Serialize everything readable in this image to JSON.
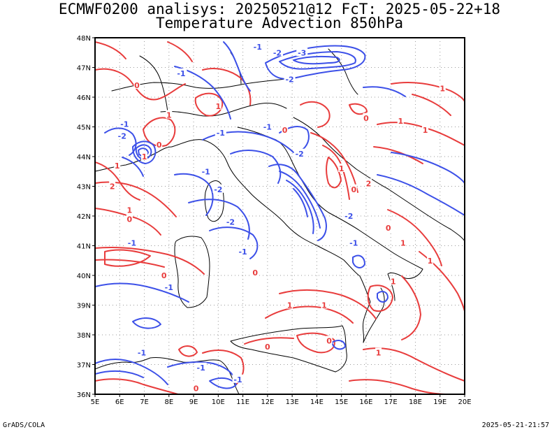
{
  "title": {
    "line1": "ECMWF0200 analisys: 20250521@12 FcT: 2025-05-22+18",
    "line2": "Temperature Advection 850hPa"
  },
  "footer": {
    "left": "GrADS/COLA",
    "right": "2025-05-21-21:57"
  },
  "map": {
    "lon_range": [
      5,
      20
    ],
    "lat_range": [
      36,
      48
    ],
    "lon_ticks": [
      "5E",
      "6E",
      "7E",
      "8E",
      "9E",
      "10E",
      "11E",
      "12E",
      "13E",
      "14E",
      "15E",
      "16E",
      "17E",
      "18E",
      "19E",
      "20E"
    ],
    "lat_ticks": [
      "36N",
      "37N",
      "38N",
      "39N",
      "40N",
      "41N",
      "42N",
      "43N",
      "44N",
      "45N",
      "46N",
      "47N",
      "48N"
    ],
    "grid": "dotted",
    "colors": {
      "positive": "#e83c3c",
      "negative": "#3c50e8",
      "coast": "#000000"
    },
    "contour_labels": [
      {
        "text": "-1",
        "lon": 11.6,
        "lat": 47.7,
        "sign": "neg"
      },
      {
        "text": "-2",
        "lon": 12.4,
        "lat": 47.5,
        "sign": "neg"
      },
      {
        "text": "-3",
        "lon": 13.4,
        "lat": 47.5,
        "sign": "neg"
      },
      {
        "text": "-2",
        "lon": 12.9,
        "lat": 46.6,
        "sign": "neg"
      },
      {
        "text": "-1",
        "lon": 8.5,
        "lat": 46.8,
        "sign": "neg"
      },
      {
        "text": "0",
        "lon": 6.7,
        "lat": 46.4,
        "sign": "pos"
      },
      {
        "text": "1",
        "lon": 8.0,
        "lat": 45.4,
        "sign": "pos"
      },
      {
        "text": "1",
        "lon": 10.0,
        "lat": 45.7,
        "sign": "pos"
      },
      {
        "text": "-1",
        "lon": 6.2,
        "lat": 45.1,
        "sign": "neg"
      },
      {
        "text": "-2",
        "lon": 6.1,
        "lat": 44.7,
        "sign": "neg"
      },
      {
        "text": "-1",
        "lon": 10.1,
        "lat": 44.8,
        "sign": "neg"
      },
      {
        "text": "-1",
        "lon": 12.0,
        "lat": 45.0,
        "sign": "neg"
      },
      {
        "text": "0",
        "lon": 12.7,
        "lat": 44.9,
        "sign": "pos"
      },
      {
        "text": "-2",
        "lon": 13.3,
        "lat": 44.1,
        "sign": "neg"
      },
      {
        "text": "0",
        "lon": 7.6,
        "lat": 44.4,
        "sign": "pos"
      },
      {
        "text": "1",
        "lon": 7.0,
        "lat": 44.0,
        "sign": "pos"
      },
      {
        "text": "1",
        "lon": 5.9,
        "lat": 43.7,
        "sign": "pos"
      },
      {
        "text": "2",
        "lon": 5.7,
        "lat": 43.0,
        "sign": "pos"
      },
      {
        "text": "-1",
        "lon": 9.5,
        "lat": 43.5,
        "sign": "neg"
      },
      {
        "text": "-2",
        "lon": 10.0,
        "lat": 42.9,
        "sign": "neg"
      },
      {
        "text": "-2",
        "lon": 10.5,
        "lat": 41.8,
        "sign": "neg"
      },
      {
        "text": "1",
        "lon": 6.4,
        "lat": 42.2,
        "sign": "pos"
      },
      {
        "text": "0",
        "lon": 6.4,
        "lat": 41.9,
        "sign": "pos"
      },
      {
        "text": "-1",
        "lon": 6.5,
        "lat": 41.1,
        "sign": "neg"
      },
      {
        "text": "0",
        "lon": 7.8,
        "lat": 40.0,
        "sign": "pos"
      },
      {
        "text": "-1",
        "lon": 8.0,
        "lat": 39.6,
        "sign": "neg"
      },
      {
        "text": "-1",
        "lon": 11.0,
        "lat": 40.8,
        "sign": "neg"
      },
      {
        "text": "0",
        "lon": 11.5,
        "lat": 40.1,
        "sign": "pos"
      },
      {
        "text": "-2",
        "lon": 15.3,
        "lat": 42.0,
        "sign": "neg"
      },
      {
        "text": "-1",
        "lon": 15.5,
        "lat": 41.1,
        "sign": "neg"
      },
      {
        "text": "0",
        "lon": 15.5,
        "lat": 42.9,
        "sign": "pos"
      },
      {
        "text": "1",
        "lon": 15.0,
        "lat": 43.6,
        "sign": "pos"
      },
      {
        "text": "2",
        "lon": 16.1,
        "lat": 43.1,
        "sign": "pos"
      },
      {
        "text": "0",
        "lon": 16.0,
        "lat": 45.3,
        "sign": "pos"
      },
      {
        "text": "1",
        "lon": 17.4,
        "lat": 45.2,
        "sign": "pos"
      },
      {
        "text": "1",
        "lon": 19.1,
        "lat": 46.3,
        "sign": "pos"
      },
      {
        "text": "1",
        "lon": 18.4,
        "lat": 44.9,
        "sign": "pos"
      },
      {
        "text": "1",
        "lon": 17.5,
        "lat": 41.1,
        "sign": "pos"
      },
      {
        "text": "1",
        "lon": 17.1,
        "lat": 39.8,
        "sign": "pos"
      },
      {
        "text": "1",
        "lon": 18.6,
        "lat": 40.5,
        "sign": "pos"
      },
      {
        "text": "0",
        "lon": 16.9,
        "lat": 41.6,
        "sign": "pos"
      },
      {
        "text": "1",
        "lon": 14.3,
        "lat": 39.0,
        "sign": "pos"
      },
      {
        "text": "1",
        "lon": 12.9,
        "lat": 39.0,
        "sign": "pos"
      },
      {
        "text": "0",
        "lon": 12.0,
        "lat": 37.6,
        "sign": "pos"
      },
      {
        "text": "0",
        "lon": 14.5,
        "lat": 37.8,
        "sign": "pos"
      },
      {
        "text": "1",
        "lon": 16.5,
        "lat": 37.4,
        "sign": "pos"
      },
      {
        "text": "-1",
        "lon": 6.9,
        "lat": 37.4,
        "sign": "neg"
      },
      {
        "text": "-1",
        "lon": 9.3,
        "lat": 36.9,
        "sign": "neg"
      },
      {
        "text": "-1",
        "lon": 10.8,
        "lat": 36.5,
        "sign": "neg"
      },
      {
        "text": "0",
        "lon": 9.1,
        "lat": 36.2,
        "sign": "pos"
      }
    ]
  }
}
